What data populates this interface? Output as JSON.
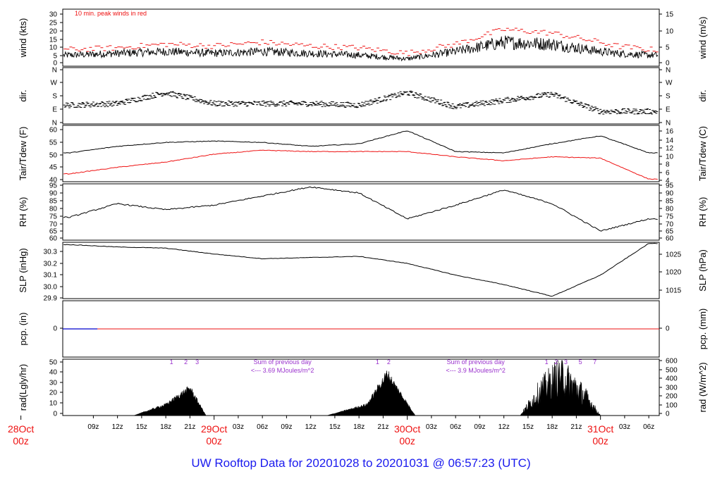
{
  "footer": {
    "title": "UW Rooftop Data for 20201028  to  20201031 @ 06:57:23  (UTC)"
  },
  "colors": {
    "primary_series": "#000000",
    "peak_or_dew_series": "#ee1111",
    "annotation_purple": "#9a32cd",
    "title_blue": "#1a1aee",
    "precip_line": "#0000cc"
  },
  "chart_data": [
    {
      "type": "line",
      "id": "wind",
      "ylabel_left": "wind (kts)",
      "ylabel_right": "wind (m/s)",
      "left_ticks": [
        "0",
        "5",
        "10",
        "15",
        "20",
        "25",
        "30"
      ],
      "right_ticks": [
        "0",
        "5",
        "10",
        "15"
      ],
      "ylim": [
        0,
        31
      ],
      "annotation": "10 min. peak winds in red",
      "x_hours": [
        6,
        12,
        18,
        24,
        30,
        36,
        42,
        48,
        54,
        60,
        66,
        72,
        74,
        78
      ],
      "series": [
        {
          "values": [
            6,
            7,
            8,
            7,
            8,
            7,
            6,
            4,
            8,
            13,
            12,
            8,
            7,
            6
          ]
        },
        {
          "name": "10 min. peak winds",
          "values": [
            9,
            10,
            12,
            11,
            13,
            11,
            10,
            7,
            12,
            20,
            18,
            13,
            11,
            9
          ]
        }
      ]
    },
    {
      "type": "scatter",
      "id": "dir",
      "ylabel_left": "dir.",
      "ylabel_right": "dir.",
      "left_ticks": [
        "N",
        "E",
        "S",
        "W",
        "N"
      ],
      "right_ticks": [
        "N",
        "E",
        "S",
        "W",
        "N"
      ],
      "ylim": [
        0,
        360
      ],
      "x_hours": [
        6,
        12,
        18,
        24,
        30,
        36,
        42,
        48,
        54,
        60,
        66,
        72,
        78
      ],
      "series": [
        {
          "values": [
            120,
            130,
            200,
            130,
            130,
            130,
            120,
            200,
            110,
            150,
            190,
            80,
            80
          ]
        }
      ]
    },
    {
      "type": "line",
      "id": "temp",
      "ylabel_left": "Tair/Tdew (F)",
      "ylabel_right": "Tair/Tdew (C)",
      "left_ticks": [
        "40",
        "45",
        "50",
        "55",
        "60"
      ],
      "right_ticks": [
        "4",
        "6",
        "8",
        "10",
        "12",
        "14",
        "16"
      ],
      "ylim": [
        39.5,
        61
      ],
      "x_hours": [
        6,
        12,
        18,
        24,
        30,
        36,
        42,
        48,
        54,
        60,
        66,
        72,
        78
      ],
      "series": [
        {
          "name": "Tair",
          "values": [
            50.5,
            53,
            54.5,
            55,
            54.5,
            53,
            54,
            59,
            51,
            50.5,
            54,
            57,
            50.5
          ]
        },
        {
          "name": "Tdew",
          "values": [
            42.5,
            45,
            47,
            50,
            51.5,
            51,
            51,
            51,
            49,
            47.5,
            49,
            48.5,
            40.5
          ]
        }
      ]
    },
    {
      "type": "line",
      "id": "rh",
      "ylabel_left": "RH (%)",
      "ylabel_right": "RH (%)",
      "left_ticks": [
        "60",
        "65",
        "70",
        "75",
        "80",
        "85",
        "90",
        "95"
      ],
      "right_ticks": [
        "60",
        "65",
        "70",
        "75",
        "80",
        "85",
        "90",
        "95"
      ],
      "ylim": [
        59,
        96
      ],
      "x_hours": [
        6,
        12,
        18,
        24,
        30,
        36,
        42,
        48,
        54,
        60,
        66,
        72,
        78
      ],
      "series": [
        {
          "values": [
            74,
            83,
            79,
            82,
            88,
            94,
            90,
            73,
            82,
            92,
            83,
            65,
            73
          ]
        }
      ]
    },
    {
      "type": "line",
      "id": "slp",
      "ylabel_left": "SLP (inHg)",
      "ylabel_right": "SLP (hPa)",
      "left_ticks": [
        "29.9",
        "30.0",
        "30.1",
        "30.2",
        "30.3"
      ],
      "right_ticks": [
        "1015",
        "1020",
        "1025"
      ],
      "ylim": [
        29.9,
        30.38
      ],
      "x_hours": [
        6,
        12,
        18,
        24,
        30,
        36,
        42,
        48,
        54,
        60,
        66,
        72,
        78
      ],
      "series": [
        {
          "values": [
            30.36,
            30.34,
            30.33,
            30.28,
            30.24,
            30.25,
            30.26,
            30.2,
            30.1,
            30.02,
            29.92,
            30.1,
            30.37
          ]
        }
      ]
    },
    {
      "type": "line",
      "id": "pcp",
      "ylabel_left": "pcp. (in)",
      "ylabel_right": "pcp. (mm)",
      "left_ticks": [
        "0"
      ],
      "right_ticks": [
        "0"
      ],
      "ylim": [
        -0.1,
        0.1
      ],
      "x_hours": [
        6,
        78
      ],
      "series": [
        {
          "values": [
            0,
            0
          ]
        }
      ]
    },
    {
      "type": "area",
      "id": "rad",
      "ylabel_left": "rad(Lgly/hr)",
      "ylabel_right": "rad (W/m^2)",
      "left_ticks": [
        "0",
        "10",
        "20",
        "30",
        "40",
        "50"
      ],
      "right_ticks": [
        "0",
        "100",
        "200",
        "300",
        "400",
        "500",
        "600"
      ],
      "ylim": [
        0,
        52
      ],
      "x_hours": [
        14,
        18,
        21,
        23,
        38,
        43,
        45.5,
        49,
        62,
        64.5,
        67,
        70,
        72
      ],
      "series": [
        {
          "values": [
            0,
            10,
            25,
            0,
            0,
            10,
            38,
            0,
            0,
            30,
            50,
            25,
            0
          ]
        }
      ],
      "annotations": [
        {
          "text": "1",
          "hour": 18.7
        },
        {
          "text": "2",
          "hour": 20.5
        },
        {
          "text": "3",
          "hour": 21.9
        },
        {
          "text": "Sum of previous day",
          "hour": 32.5
        },
        {
          "text": "<--- 3.69 MJoules/m^2",
          "hour": 32.5
        },
        {
          "text": "1",
          "hour": 44.3
        },
        {
          "text": "2",
          "hour": 45.7
        },
        {
          "text": "Sum of previous day",
          "hour": 56.5
        },
        {
          "text": "<--- 3.9 MJoules/m^2",
          "hour": 56.5
        },
        {
          "text": "1",
          "hour": 65.3
        },
        {
          "text": "2",
          "hour": 66.5
        },
        {
          "text": "3",
          "hour": 67.7
        },
        {
          "text": "5",
          "hour": 69.5
        },
        {
          "text": "7",
          "hour": 71.3
        }
      ]
    }
  ],
  "time_axis": {
    "ticks": [
      {
        "label": "09z",
        "hour": 9
      },
      {
        "label": "12z",
        "hour": 12
      },
      {
        "label": "15z",
        "hour": 15
      },
      {
        "label": "18z",
        "hour": 18
      },
      {
        "label": "21z",
        "hour": 21
      },
      {
        "label": "03z",
        "hour": 27
      },
      {
        "label": "06z",
        "hour": 30
      },
      {
        "label": "09z",
        "hour": 33
      },
      {
        "label": "12z",
        "hour": 36
      },
      {
        "label": "15z",
        "hour": 39
      },
      {
        "label": "18z",
        "hour": 42
      },
      {
        "label": "21z",
        "hour": 45
      },
      {
        "label": "03z",
        "hour": 51
      },
      {
        "label": "06z",
        "hour": 54
      },
      {
        "label": "09z",
        "hour": 57
      },
      {
        "label": "12z",
        "hour": 60
      },
      {
        "label": "15z",
        "hour": 63
      },
      {
        "label": "18z",
        "hour": 66
      },
      {
        "label": "21z",
        "hour": 69
      },
      {
        "label": "03z",
        "hour": 75
      },
      {
        "label": "06z",
        "hour": 78
      }
    ],
    "days": [
      {
        "label": "28Oct",
        "sub": "00z",
        "hour": 0
      },
      {
        "label": "29Oct",
        "sub": "00z",
        "hour": 24
      },
      {
        "label": "30Oct",
        "sub": "00z",
        "hour": 48
      },
      {
        "label": "31Oct",
        "sub": "00z",
        "hour": 72
      }
    ]
  }
}
